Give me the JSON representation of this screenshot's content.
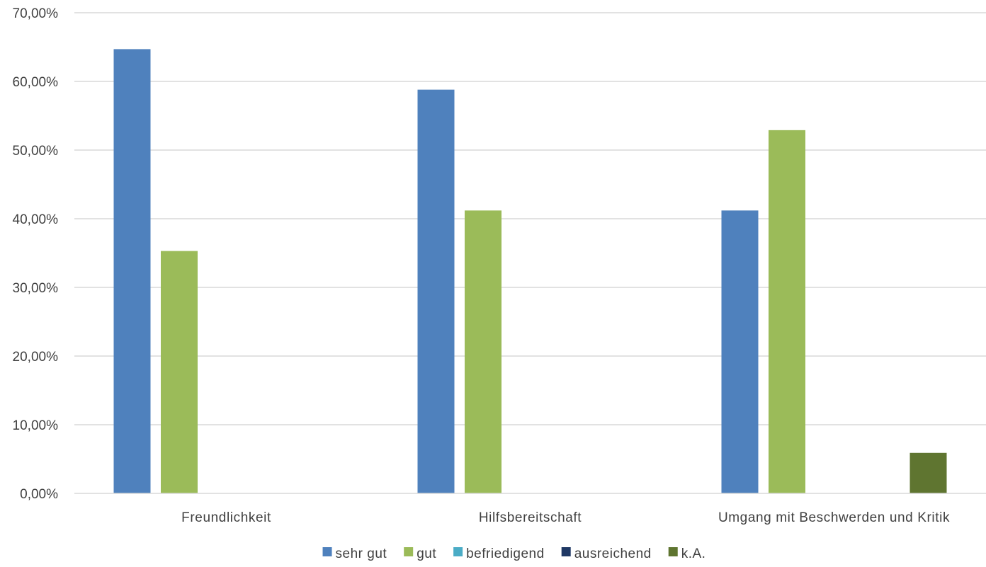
{
  "chart_data": {
    "type": "bar",
    "title": "",
    "xlabel": "",
    "ylabel": "",
    "categories": [
      "Freundlichkeit",
      "Hilfsbereitschaft",
      "Umgang mit Beschwerden und Kritik"
    ],
    "series": [
      {
        "name": "sehr gut",
        "color": "#4f81bd",
        "values": [
          64.7,
          58.8,
          41.2
        ]
      },
      {
        "name": "gut",
        "color": "#9bbb59",
        "values": [
          35.3,
          41.2,
          52.9
        ]
      },
      {
        "name": "befriedigend",
        "color": "#4bacc6",
        "values": [
          0,
          0,
          0
        ]
      },
      {
        "name": "ausreichend",
        "color": "#1f3864",
        "values": [
          0,
          0,
          0
        ]
      },
      {
        "name": "k.A.",
        "color": "#5f7530",
        "values": [
          0,
          0,
          5.9
        ]
      }
    ],
    "ylim": [
      0,
      70
    ],
    "yticks": [
      "0,00%",
      "10,00%",
      "20,00%",
      "30,00%",
      "40,00%",
      "50,00%",
      "60,00%",
      "70,00%"
    ],
    "grid": true,
    "legend_position": "bottom"
  }
}
